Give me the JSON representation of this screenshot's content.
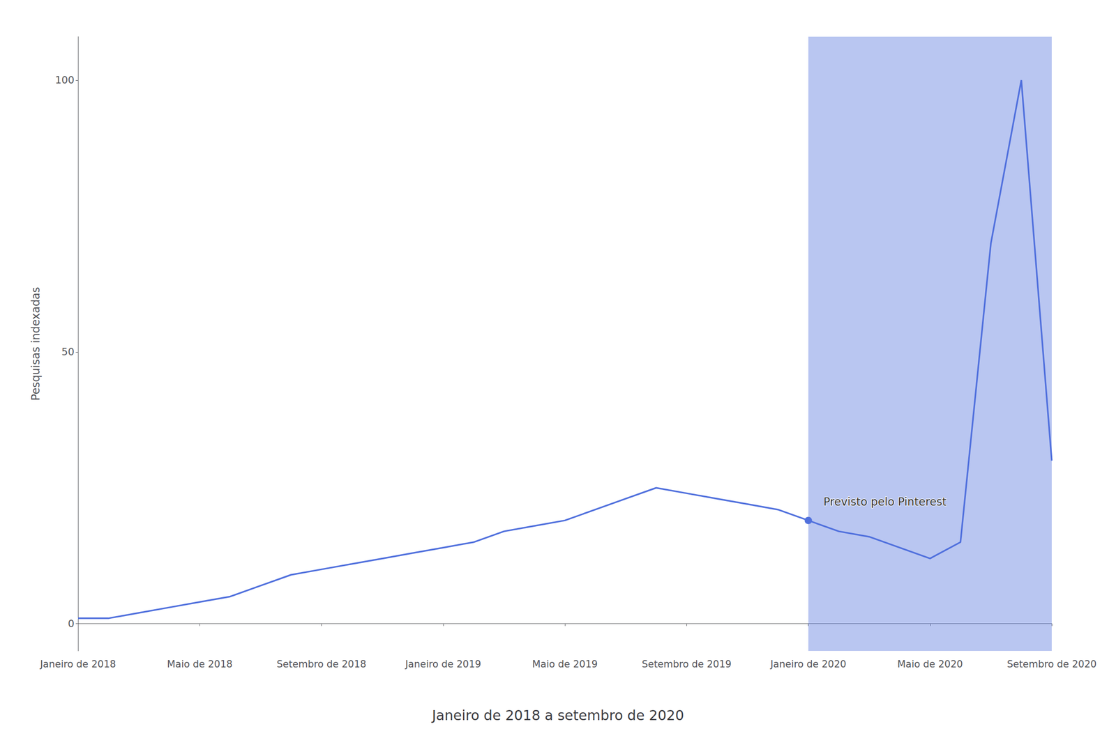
{
  "chart_data": {
    "type": "line",
    "title": "Janeiro de 2018 a setembro de 2020",
    "ylabel": "Pesquisas indexadas",
    "x": [
      0,
      1,
      2,
      3,
      4,
      5,
      6,
      7,
      8,
      9,
      10,
      11,
      12,
      13,
      14,
      15,
      16,
      17,
      18,
      19,
      20,
      21,
      22,
      23,
      24,
      25,
      26,
      27,
      28,
      29,
      30,
      31,
      32
    ],
    "values": [
      1,
      1,
      2,
      3,
      4,
      5,
      7,
      9,
      10,
      11,
      12,
      13,
      14,
      15,
      17,
      18,
      19,
      21,
      23,
      25,
      24,
      23,
      22,
      21,
      19,
      17,
      16,
      14,
      12,
      15,
      70,
      100,
      30
    ],
    "xlim": [
      0,
      32
    ],
    "xticks": [
      {
        "value": 0,
        "label": "Janeiro de 2018"
      },
      {
        "value": 4,
        "label": "Maio de 2018"
      },
      {
        "value": 8,
        "label": "Setembro de 2018"
      },
      {
        "value": 12,
        "label": "Janeiro de 2019"
      },
      {
        "value": 16,
        "label": "Maio de 2019"
      },
      {
        "value": 20,
        "label": "Setembro de 2019"
      },
      {
        "value": 24,
        "label": "Janeiro de 2020"
      },
      {
        "value": 28,
        "label": "Maio de 2020"
      },
      {
        "value": 32,
        "label": "Setembro de 2020"
      }
    ],
    "ylim": [
      -5,
      108
    ],
    "yticks": [
      0,
      50,
      100
    ],
    "forecast_start": 24,
    "annotations": [
      {
        "text": "Previsto pelo Pinterest",
        "x": 24,
        "y": 19
      }
    ],
    "grid": false
  }
}
